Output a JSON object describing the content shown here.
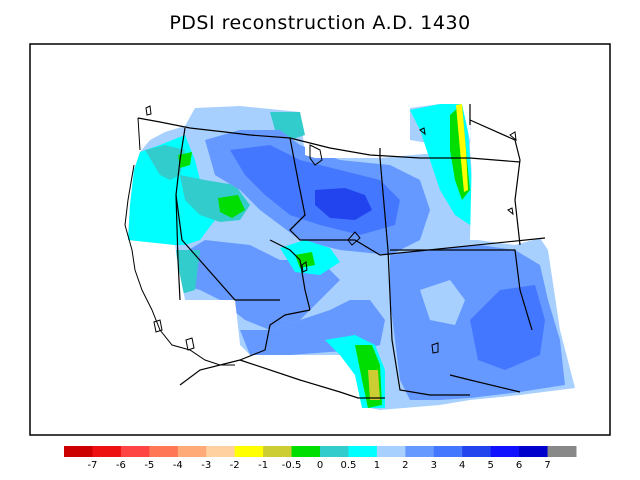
{
  "title": "PDSI reconstruction A.D. 1430",
  "colorbar": {
    "colors": [
      "#cc0000",
      "#ee1111",
      "#ff4444",
      "#ff7755",
      "#ffaa77",
      "#ffd0a0",
      "#ffff00",
      "#cccc33",
      "#00dd00",
      "#33cccc",
      "#00ffff",
      "#a8d0ff",
      "#6699ff",
      "#4477ff",
      "#2244ee",
      "#1111ff",
      "#0000cc",
      "#888888"
    ],
    "labels": [
      "-7",
      "-6",
      "-5",
      "-4",
      "-3",
      "-2",
      "-1",
      "-0.5",
      "0",
      "0.5",
      "1",
      "2",
      "3",
      "4",
      "5",
      "6",
      "7"
    ]
  },
  "fill_colors": {
    "light_blue": "#a8d0ff",
    "mid_blue": "#6699ff",
    "blue": "#4477ff",
    "deep_blue": "#2244ee",
    "cyan": "#00ffff",
    "teal": "#33cccc",
    "green": "#00dd00",
    "olive": "#cccc33",
    "yellow": "#ffff00"
  }
}
